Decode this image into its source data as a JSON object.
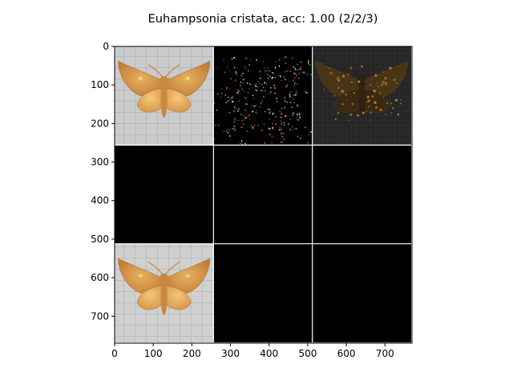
{
  "chart_data": {
    "type": "image-grid",
    "title": "Euhampsonia cristata, acc: 1.00 (2/2/3)",
    "xlim": [
      0,
      770
    ],
    "ylim": [
      770,
      0
    ],
    "x_ticks": [
      0,
      100,
      200,
      300,
      400,
      500,
      600,
      700
    ],
    "y_ticks": [
      0,
      100,
      200,
      300,
      400,
      500,
      600,
      700
    ],
    "grid": {
      "rows": 3,
      "cols": 3,
      "tile_size": 256,
      "separator_color": "#ffffff"
    },
    "tiles": [
      {
        "row": 0,
        "col": 0,
        "content": "moth-photo",
        "background": "#c9cbcc"
      },
      {
        "row": 0,
        "col": 1,
        "content": "saliency-noise",
        "background": "#000000"
      },
      {
        "row": 0,
        "col": 2,
        "content": "dark-moth",
        "background": "#262626"
      },
      {
        "row": 1,
        "col": 0,
        "content": "blank",
        "background": "#000000"
      },
      {
        "row": 1,
        "col": 1,
        "content": "blank",
        "background": "#000000"
      },
      {
        "row": 1,
        "col": 2,
        "content": "blank",
        "background": "#000000"
      },
      {
        "row": 2,
        "col": 0,
        "content": "moth-photo-2",
        "background": "#cfd0cf"
      },
      {
        "row": 2,
        "col": 1,
        "content": "blank",
        "background": "#000000"
      },
      {
        "row": 2,
        "col": 2,
        "content": "blank",
        "background": "#000000"
      }
    ],
    "colors": {
      "wing": "#d28f45",
      "wing_light": "#e3b26a",
      "body": "#c98840",
      "dark_wing": "#4a3418",
      "noise": [
        "#d8403c",
        "#3fb6d8",
        "#e0e0e0",
        "#56c26b",
        "#e07cbc",
        "#f0d24a"
      ]
    }
  }
}
